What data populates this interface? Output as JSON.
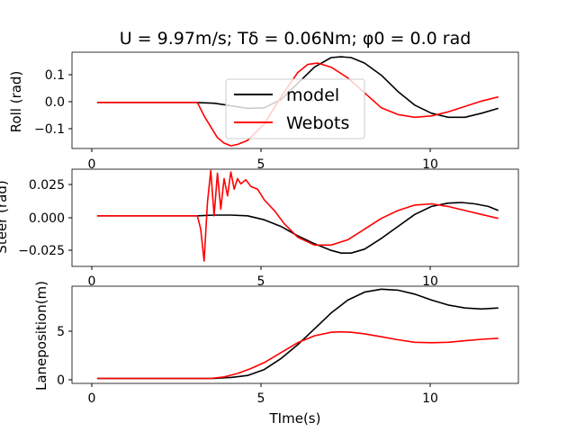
{
  "chart_data": [
    {
      "type": "line",
      "title": "U = 9.97m/s; Tδ = 0.06Nm; φ0 = 0.0 rad",
      "xlabel": "",
      "ylabel": "Roll (rad)",
      "xlim": [
        -0.75,
        12.6
      ],
      "ylim": [
        -0.17,
        0.185
      ],
      "xticks": [
        "0",
        "5",
        "10"
      ],
      "yticks": [
        "0.1",
        "0.0",
        "−0.1"
      ],
      "legend": {
        "location": "center",
        "entries": [
          "model",
          "Webots"
        ]
      },
      "series": [
        {
          "name": "model",
          "color": "#000000",
          "x": [
            0,
            2.9,
            3.5,
            4,
            4.5,
            5,
            5.5,
            6,
            6.5,
            7,
            7.3,
            7.6,
            8,
            8.5,
            9,
            9.5,
            10,
            10.5,
            11,
            11.5,
            12
          ],
          "y": [
            0,
            0,
            -0.003,
            -0.012,
            -0.022,
            -0.02,
            0.01,
            0.07,
            0.13,
            0.165,
            0.168,
            0.165,
            0.145,
            0.1,
            0.04,
            -0.01,
            -0.04,
            -0.055,
            -0.055,
            -0.04,
            -0.022
          ]
        },
        {
          "name": "Webots",
          "color": "#ff0000",
          "x": [
            0,
            3.0,
            3.2,
            3.4,
            3.6,
            3.8,
            4.0,
            4.2,
            4.5,
            5,
            5.5,
            6,
            6.3,
            6.6,
            7,
            7.5,
            8,
            8.5,
            9,
            9.5,
            10,
            10.5,
            11,
            11.5,
            12
          ],
          "y": [
            0,
            0,
            -0.05,
            -0.09,
            -0.13,
            -0.15,
            -0.16,
            -0.155,
            -0.14,
            -0.08,
            0.02,
            0.11,
            0.14,
            0.145,
            0.13,
            0.09,
            0.035,
            -0.02,
            -0.045,
            -0.055,
            -0.05,
            -0.035,
            -0.015,
            0.005,
            0.02
          ]
        }
      ]
    },
    {
      "type": "line",
      "title": "",
      "xlabel": "",
      "ylabel": "Steer (rad)",
      "xlim": [
        -0.75,
        12.6
      ],
      "ylim": [
        -0.038,
        0.035
      ],
      "xticks": [
        "0",
        "5",
        "10"
      ],
      "yticks": [
        "0.025",
        "0.000",
        "−0.025"
      ],
      "series": [
        {
          "name": "model",
          "color": "#000000",
          "x": [
            0,
            3.0,
            3.5,
            4,
            4.5,
            5,
            5.5,
            6,
            6.5,
            7,
            7.3,
            7.6,
            8,
            8.5,
            9,
            9.5,
            10,
            10.5,
            10.9,
            11.3,
            11.7,
            12
          ],
          "y": [
            0,
            0,
            0.0005,
            0.0005,
            0,
            -0.003,
            -0.008,
            -0.015,
            -0.021,
            -0.026,
            -0.028,
            -0.028,
            -0.025,
            -0.017,
            -0.008,
            0.001,
            0.007,
            0.0095,
            0.01,
            0.009,
            0.007,
            0.004
          ]
        },
        {
          "name": "Webots",
          "color": "#ff0000",
          "x": [
            0,
            3.0,
            3.1,
            3.2,
            3.3,
            3.4,
            3.5,
            3.6,
            3.7,
            3.8,
            3.9,
            4.0,
            4.1,
            4.2,
            4.3,
            4.45,
            4.6,
            4.8,
            5.0,
            5.3,
            5.6,
            6.0,
            6.5,
            7.0,
            7.5,
            8.0,
            8.5,
            9.0,
            9.5,
            10.0,
            10.5,
            11.0,
            11.5,
            12.0
          ],
          "y": [
            0,
            0,
            -0.01,
            -0.034,
            0.01,
            0.034,
            0.0,
            0.032,
            0.005,
            0.028,
            0.015,
            0.033,
            0.02,
            0.028,
            0.024,
            0.027,
            0.022,
            0.02,
            0.012,
            0.004,
            -0.006,
            -0.016,
            -0.022,
            -0.022,
            -0.018,
            -0.01,
            -0.002,
            0.004,
            0.008,
            0.009,
            0.007,
            0.004,
            0.001,
            -0.002
          ]
        }
      ]
    },
    {
      "type": "line",
      "title": "",
      "xlabel": "TIme(s)",
      "ylabel": "Laneposition(m)",
      "xlim": [
        -0.75,
        12.6
      ],
      "ylim": [
        -0.5,
        9.3
      ],
      "xticks": [
        "0",
        "5",
        "10"
      ],
      "yticks": [
        "5",
        "0"
      ],
      "series": [
        {
          "name": "model",
          "color": "#000000",
          "x": [
            0,
            3.5,
            4,
            4.5,
            5,
            5.5,
            6,
            6.5,
            7,
            7.5,
            8,
            8.5,
            9,
            9.5,
            10,
            10.5,
            11,
            11.5,
            12
          ],
          "y": [
            0,
            0,
            0.1,
            0.3,
            0.9,
            2.0,
            3.4,
            5.0,
            6.6,
            7.9,
            8.7,
            9.0,
            8.9,
            8.5,
            7.9,
            7.4,
            7.1,
            7.0,
            7.1
          ]
        },
        {
          "name": "Webots",
          "color": "#ff0000",
          "x": [
            0,
            3.4,
            3.8,
            4.2,
            4.6,
            5,
            5.5,
            6,
            6.5,
            7,
            7.3,
            7.6,
            8,
            8.5,
            9,
            9.5,
            10,
            10.5,
            11,
            11.5,
            12
          ],
          "y": [
            0,
            0,
            0.15,
            0.5,
            1.0,
            1.6,
            2.6,
            3.6,
            4.3,
            4.65,
            4.7,
            4.65,
            4.5,
            4.2,
            3.9,
            3.65,
            3.6,
            3.65,
            3.8,
            3.95,
            4.05
          ]
        }
      ]
    }
  ]
}
